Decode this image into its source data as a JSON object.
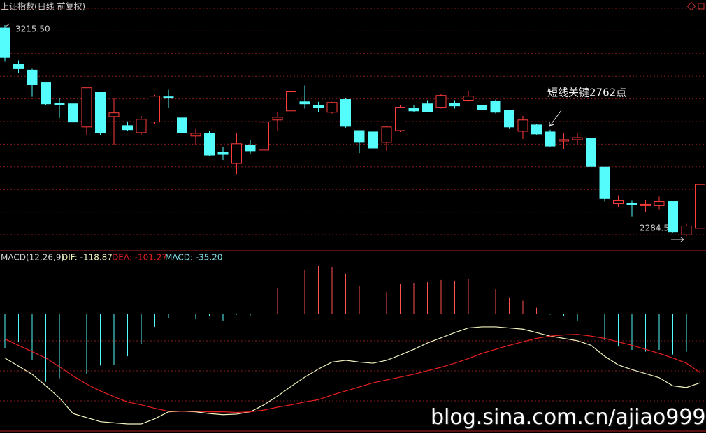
{
  "chart_data": [
    {
      "type": "candlestick",
      "title": "上证指数(日线 前复权)",
      "max_label": "3215.50",
      "min_label": "2284.5",
      "annotation": "短线关键2762点",
      "up_color": "#ff3c3c",
      "down_color": "#54fcfc",
      "grid": true,
      "open": [
        3203,
        3042,
        3017,
        2961,
        2871,
        2868,
        2766,
        2918,
        2812,
        2772,
        2741,
        2788,
        2899,
        2806,
        2726,
        2738,
        2654,
        2605,
        2685,
        2664,
        2797,
        2837,
        2877,
        2862,
        2831,
        2887,
        2750,
        2744,
        2698,
        2750,
        2850,
        2868,
        2853,
        2871,
        2884,
        2862,
        2881,
        2840,
        2747,
        2775,
        2744,
        2704,
        2710,
        2716,
        2589,
        2428,
        2428,
        2419,
        2419,
        2437,
        2290,
        2319
      ],
      "high": [
        3215.5,
        3060,
        3023,
        2961,
        2893,
        2868,
        2939,
        2918,
        2893,
        2791,
        2815,
        2908,
        2930,
        2812,
        2760,
        2750,
        2676,
        2738,
        2707,
        2794,
        2831,
        2924,
        2949,
        2877,
        2877,
        2893,
        2750,
        2750,
        2769,
        2862,
        2862,
        2884,
        2912,
        2884,
        2924,
        2868,
        2887,
        2840,
        2815,
        2781,
        2754,
        2738,
        2738,
        2716,
        2589,
        2465,
        2440,
        2443,
        2459,
        2437,
        2338,
        2512
      ],
      "low": [
        3054,
        3005,
        2899,
        2862,
        2806,
        2763,
        2729,
        2732,
        2688,
        2747,
        2732,
        2781,
        2850,
        2738,
        2685,
        2639,
        2620,
        2558,
        2645,
        2661,
        2750,
        2831,
        2847,
        2831,
        2825,
        2763,
        2651,
        2670,
        2661,
        2744,
        2831,
        2831,
        2847,
        2847,
        2877,
        2825,
        2825,
        2760,
        2713,
        2732,
        2676,
        2670,
        2688,
        2583,
        2437,
        2412,
        2372,
        2391,
        2403,
        2301,
        2284.5,
        2289
      ],
      "close": [
        3073,
        3023,
        2955,
        2868,
        2865,
        2788,
        2939,
        2741,
        2828,
        2754,
        2800,
        2902,
        2893,
        2741,
        2738,
        2642,
        2645,
        2692,
        2661,
        2788,
        2809,
        2921,
        2868,
        2853,
        2874,
        2769,
        2698,
        2673,
        2766,
        2853,
        2837,
        2834,
        2905,
        2859,
        2902,
        2843,
        2831,
        2766,
        2797,
        2735,
        2682,
        2710,
        2719,
        2592,
        2450,
        2440,
        2425,
        2425,
        2437,
        2304,
        2329,
        2512
      ]
    },
    {
      "type": "macd",
      "title": "MACD(12,26,9)",
      "series": [
        {
          "label": "DIF: -118.87",
          "type": "line",
          "color": "#f4f4c0",
          "values": [
            -76,
            -90,
            -104,
            -124,
            -145,
            -172,
            -179,
            -186,
            -188,
            -190,
            -190,
            -181,
            -169,
            -168,
            -169,
            -172,
            -174,
            -173,
            -169,
            -157,
            -142,
            -125,
            -109,
            -95,
            -83,
            -80,
            -83,
            -85,
            -80,
            -71,
            -61,
            -50,
            -41,
            -32,
            -24,
            -22,
            -22,
            -24,
            -26,
            -32,
            -38,
            -42,
            -46,
            -54,
            -73,
            -88,
            -96,
            -103,
            -110,
            -124,
            -127,
            -118.87
          ]
        },
        {
          "label": "DEA: -101.27",
          "type": "line",
          "color": "#e82020",
          "values": [
            -43,
            -54,
            -65,
            -76,
            -91,
            -107,
            -121,
            -133,
            -143,
            -152,
            -157,
            -163,
            -168,
            -168,
            -168,
            -169,
            -169,
            -170,
            -169,
            -166,
            -161,
            -157,
            -152,
            -148,
            -140,
            -133,
            -126,
            -119,
            -114,
            -109,
            -104,
            -98,
            -92,
            -85,
            -77,
            -68,
            -61,
            -54,
            -48,
            -42,
            -38,
            -36,
            -35,
            -38,
            -42,
            -48,
            -54,
            -61,
            -68,
            -76,
            -85,
            -101.27
          ]
        },
        {
          "label": "MACD: -35.20",
          "type": "bar",
          "color": "#7ee0e8",
          "up_color": "#ff5050",
          "down_color": "#54fcfc",
          "values": [
            -59,
            -48,
            -79,
            -117,
            -111,
            -121,
            -104,
            -89,
            -88,
            -73,
            -52,
            -22,
            -7,
            -5,
            -9,
            -4,
            -11,
            -1,
            -2,
            23,
            45,
            70,
            77,
            83,
            81,
            70,
            48,
            33,
            38,
            52,
            54,
            55,
            59,
            57,
            60,
            52,
            43,
            29,
            23,
            11,
            -1,
            -4,
            -11,
            -23,
            -45,
            -56,
            -62,
            -65,
            -62,
            -70,
            -65,
            -35.2
          ]
        }
      ]
    }
  ]
}
